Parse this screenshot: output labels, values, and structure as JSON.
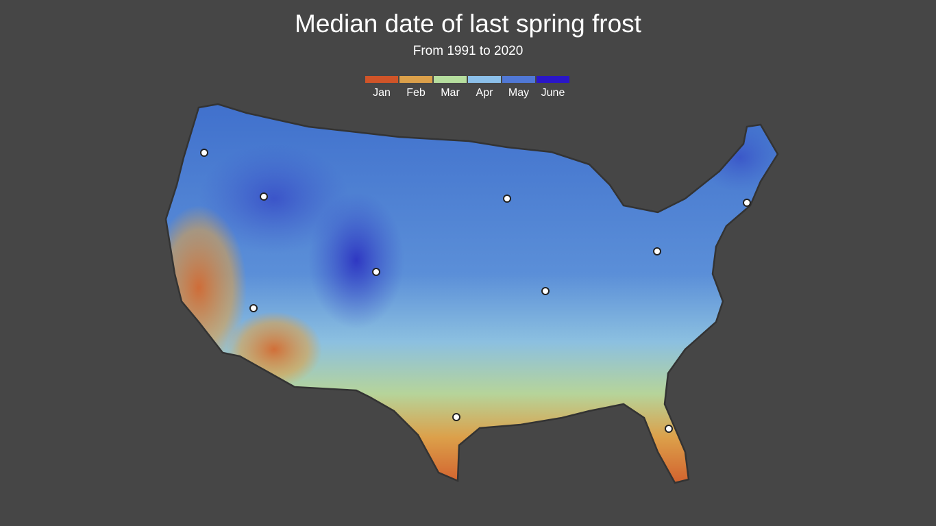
{
  "title": "Median date of last spring frost",
  "subtitle": "From 1991 to 2020",
  "legend": [
    {
      "label": "Jan",
      "color": "#d05428"
    },
    {
      "label": "Feb",
      "color": "#dca04a"
    },
    {
      "label": "Mar",
      "color": "#b6de9e"
    },
    {
      "label": "Apr",
      "color": "#8cc0ea"
    },
    {
      "label": "May",
      "color": "#5078d6"
    },
    {
      "label": "June",
      "color": "#2a16c8"
    }
  ],
  "map": {
    "region": "contiguous-united-states",
    "city_markers": 10
  }
}
